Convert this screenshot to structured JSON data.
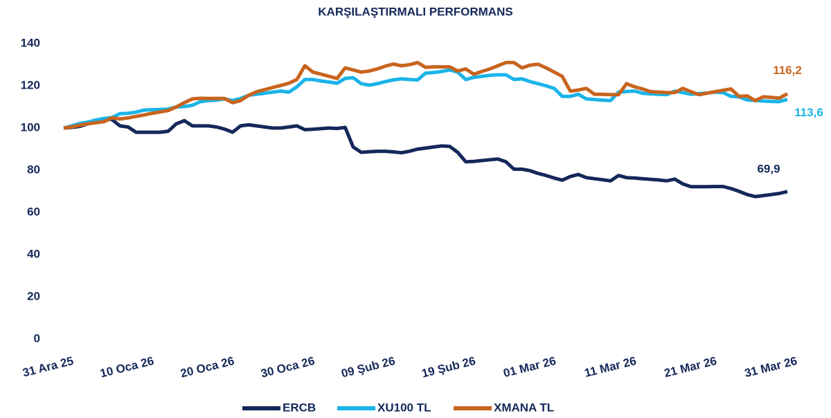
{
  "chart_data": {
    "type": "line",
    "title": "KARŞILAŞTIRMALI PERFORMANS",
    "categories": [
      "31 Ara 25",
      null,
      null,
      null,
      null,
      null,
      null,
      null,
      null,
      null,
      "10 Oca 26",
      null,
      null,
      null,
      null,
      null,
      null,
      null,
      null,
      null,
      "20 Oca 26",
      null,
      null,
      null,
      null,
      null,
      null,
      null,
      null,
      null,
      "30 Oca 26",
      null,
      null,
      null,
      null,
      null,
      null,
      null,
      null,
      null,
      "09 Şub 26",
      null,
      null,
      null,
      null,
      null,
      null,
      null,
      null,
      null,
      "19 Şub 26",
      null,
      null,
      null,
      null,
      null,
      null,
      null,
      null,
      null,
      "01 Mar 26",
      null,
      null,
      null,
      null,
      null,
      null,
      null,
      null,
      null,
      "11 Mar 26",
      null,
      null,
      null,
      null,
      null,
      null,
      null,
      null,
      null,
      "21 Mar 26",
      null,
      null,
      null,
      null,
      null,
      null,
      null,
      null,
      null,
      "31 Mar 26"
    ],
    "series": [
      {
        "name": "ERCB",
        "color": "#14285a",
        "end_label": "69,9",
        "values": [
          100,
          100.3,
          100.8,
          102,
          103,
          104.5,
          104,
          101,
          100.5,
          98,
          98,
          98,
          98,
          98.5,
          102,
          103.5,
          101,
          101,
          101,
          100.5,
          99.5,
          98,
          101,
          101.5,
          101,
          100.5,
          100,
          100,
          100.5,
          101,
          99.2,
          99.4,
          99.7,
          100,
          99.8,
          100.3,
          91,
          88.5,
          88.8,
          89,
          89,
          88.7,
          88.3,
          89,
          90,
          90.5,
          91,
          91.5,
          91.3,
          88.5,
          84,
          84.2,
          84.6,
          85,
          85.3,
          84,
          80.5,
          80.5,
          79.8,
          78.5,
          77.5,
          76.3,
          75.3,
          77,
          78,
          76.5,
          76,
          75.5,
          75,
          77.5,
          76.5,
          76.3,
          76,
          75.7,
          75.4,
          75,
          75.8,
          73.5,
          72.2,
          72.2,
          72.2,
          72.3,
          72.3,
          71.3,
          70,
          68.5,
          67.5,
          68,
          68.5,
          69,
          69.9
        ]
      },
      {
        "name": "XU100 TL",
        "color": "#1ab4e8",
        "end_label": "113,6",
        "values": [
          100,
          101,
          102.2,
          102.8,
          103.8,
          104.5,
          105,
          106.8,
          107,
          107.5,
          108.5,
          108.7,
          108.8,
          109,
          110,
          110.2,
          110.8,
          112.5,
          113,
          113.2,
          113.8,
          113,
          114,
          115.5,
          116,
          116.5,
          117,
          117.5,
          117,
          119.5,
          123,
          123,
          122.3,
          121.8,
          121.2,
          123.5,
          123.8,
          121,
          120.3,
          121,
          122,
          122.8,
          123.3,
          123,
          122.8,
          126,
          126.3,
          126.8,
          127.5,
          126.5,
          123,
          124,
          124.5,
          125,
          125.2,
          125.2,
          123,
          123.3,
          122,
          121,
          120,
          118.8,
          115,
          115,
          116,
          113.8,
          113.5,
          113.2,
          113,
          117,
          117.3,
          117.5,
          116.5,
          116.2,
          116,
          115.8,
          117.5,
          116.8,
          116,
          116.3,
          116.6,
          117,
          116.8,
          115,
          114.8,
          113.3,
          113,
          112.8,
          112.6,
          112.5,
          113.6
        ]
      },
      {
        "name": "XMANA TL",
        "color": "#c8641e",
        "end_label": "116,2",
        "values": [
          100,
          100.5,
          101.3,
          102,
          102.5,
          103,
          104.8,
          104.3,
          104.8,
          105.5,
          106.2,
          107,
          107.6,
          108.3,
          110,
          112,
          113.8,
          114.1,
          114,
          114,
          114,
          112,
          113,
          115.5,
          117.2,
          118.2,
          119.2,
          120.2,
          121.2,
          123,
          129.5,
          126.5,
          125.5,
          124.5,
          123.5,
          128.5,
          127.5,
          126.5,
          127,
          128,
          129.3,
          130.3,
          129.5,
          130,
          131,
          128.8,
          129,
          129,
          129,
          127,
          128,
          125.5,
          126.8,
          128,
          129.5,
          131,
          131,
          128.5,
          129.8,
          130.2,
          128.5,
          126.5,
          124.5,
          117.5,
          118,
          118.8,
          116,
          116,
          115.8,
          115.8,
          121,
          119.5,
          118.5,
          117.2,
          117,
          116.8,
          116.8,
          118.8,
          117.2,
          115.8,
          116.5,
          117.2,
          117.9,
          118.5,
          115,
          115.2,
          113,
          114.8,
          114.5,
          114.2,
          116.2
        ]
      }
    ],
    "ylim": [
      0,
      140
    ],
    "yticks": [
      0,
      20,
      40,
      60,
      80,
      100,
      120,
      140
    ],
    "grid": false,
    "legend": "bottom"
  }
}
